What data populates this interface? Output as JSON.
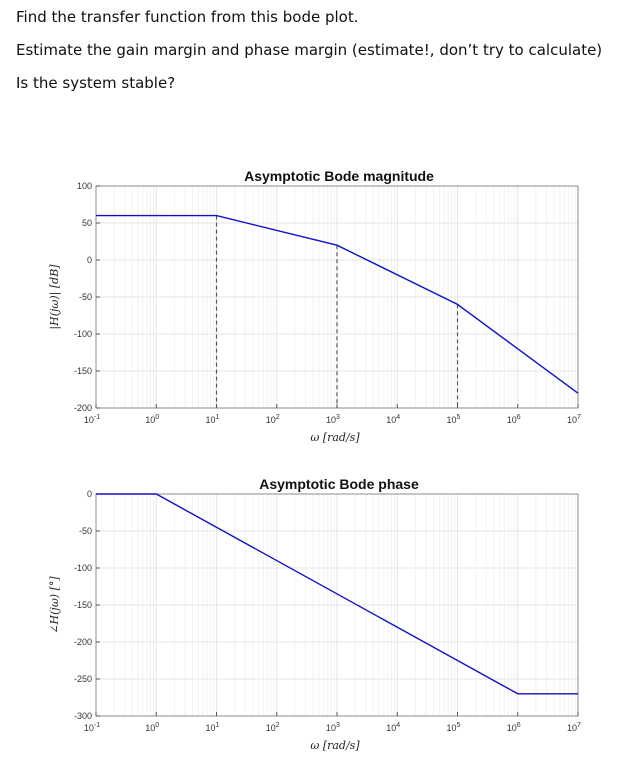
{
  "questions": [
    "Find the transfer function from this bode plot.",
    "Estimate the gain margin and phase margin (estimate!, don’t try to calculate)",
    "Is the system stable?"
  ],
  "colors": {
    "line": "#1010c8",
    "grid": "#e6e6e6",
    "minor_grid": "#f2f2f2"
  },
  "chart_data": [
    {
      "type": "line",
      "title": "Asymptotic Bode magnitude",
      "xlabel": "ω [rad/s]",
      "ylabel": "|H(jω)| [dB]",
      "xscale": "log",
      "xlim": [
        0.1,
        10000000
      ],
      "ylim": [
        -200,
        100
      ],
      "yticks": [
        100,
        50,
        0,
        -50,
        -100,
        -150,
        -200
      ],
      "xticks": [
        {
          "base": "10",
          "exp": "-1"
        },
        {
          "base": "10",
          "exp": "0"
        },
        {
          "base": "10",
          "exp": "1"
        },
        {
          "base": "10",
          "exp": "2"
        },
        {
          "base": "10",
          "exp": "3"
        },
        {
          "base": "10",
          "exp": "4"
        },
        {
          "base": "10",
          "exp": "5"
        },
        {
          "base": "10",
          "exp": "6"
        },
        {
          "base": "10",
          "exp": "7"
        }
      ],
      "grid": true,
      "series": [
        {
          "x": [
            0.1,
            10,
            1000,
            100000,
            10000000
          ],
          "y": [
            60,
            60,
            20,
            -60,
            -180
          ]
        }
      ],
      "vlines": [
        {
          "x": 10,
          "y": 60
        },
        {
          "x": 1000,
          "y": 20
        },
        {
          "x": 100000,
          "y": -60
        }
      ]
    },
    {
      "type": "line",
      "title": "Asymptotic Bode phase",
      "xlabel": "ω [rad/s]",
      "ylabel": "∠H(jω) [°]",
      "xscale": "log",
      "xlim": [
        0.1,
        10000000
      ],
      "ylim": [
        -300,
        0
      ],
      "yticks": [
        0,
        -50,
        -100,
        -150,
        -200,
        -250,
        -300
      ],
      "xticks": [
        {
          "base": "10",
          "exp": "-1"
        },
        {
          "base": "10",
          "exp": "0"
        },
        {
          "base": "10",
          "exp": "1"
        },
        {
          "base": "10",
          "exp": "2"
        },
        {
          "base": "10",
          "exp": "3"
        },
        {
          "base": "10",
          "exp": "4"
        },
        {
          "base": "10",
          "exp": "5"
        },
        {
          "base": "10",
          "exp": "6"
        },
        {
          "base": "10",
          "exp": "7"
        }
      ],
      "grid": true,
      "series": [
        {
          "x": [
            0.1,
            1,
            1000000,
            10000000
          ],
          "y": [
            0,
            0,
            -270,
            -270
          ]
        }
      ]
    }
  ]
}
